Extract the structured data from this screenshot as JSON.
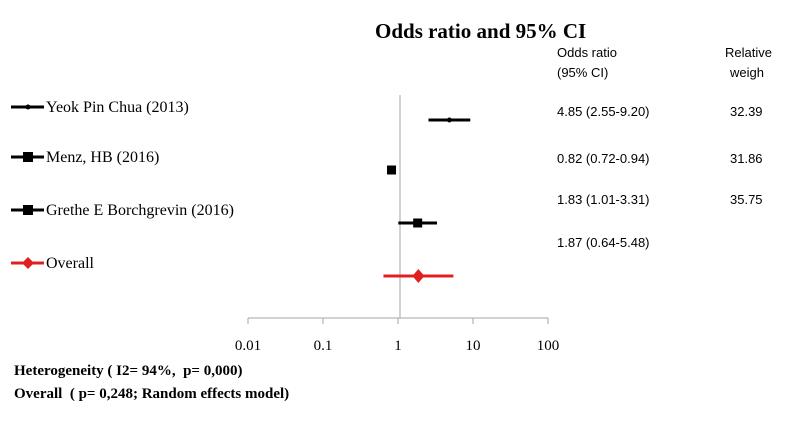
{
  "chart_data": {
    "type": "forest",
    "title": "Odds ratio and 95% CI",
    "x_scale": "log",
    "xlim": [
      0.01,
      100
    ],
    "x_ticks": [
      "0.01",
      "0.1",
      "1",
      "10",
      "100"
    ],
    "reference_line": 1,
    "columns": {
      "or_header": [
        "Odds ratio",
        "(95% CI)"
      ],
      "weight_header": [
        "Relative",
        "weigh"
      ]
    },
    "studies": [
      {
        "label": "Yeok Pin Chua (2013)",
        "or": 4.85,
        "ci_low": 2.55,
        "ci_high": 9.2,
        "or_text": "4.85 (2.55-9.20)",
        "weight": "32.39",
        "marker": "dot",
        "color": "#000000"
      },
      {
        "label": "Menz, HB (2016)",
        "or": 0.82,
        "ci_low": 0.72,
        "ci_high": 0.94,
        "or_text": "0.82 (0.72-0.94)",
        "weight": "31.86",
        "marker": "square",
        "color": "#000000"
      },
      {
        "label": "Grethe E Borchgrevin (2016)",
        "or": 1.83,
        "ci_low": 1.01,
        "ci_high": 3.31,
        "or_text": "1.83 (1.01-3.31)",
        "weight": "35.75",
        "marker": "square",
        "color": "#000000"
      }
    ],
    "overall": {
      "label": "Overall",
      "or": 1.87,
      "ci_low": 0.64,
      "ci_high": 5.48,
      "or_text": "1.87 (0.64-5.48)",
      "marker": "diamond",
      "color": "#e02020"
    }
  },
  "footer": {
    "heterogeneity": "Heterogeneity ( I2= 94%,  p= 0,000)",
    "overall_test": "Overall  ( p= 0,248; Random effects model)"
  }
}
